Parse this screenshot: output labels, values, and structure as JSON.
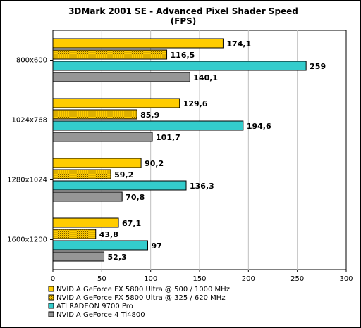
{
  "chart_data": {
    "type": "bar",
    "orientation": "horizontal",
    "title": "3DMark 2001 SE - Advanced Pixel Shader Speed",
    "subtitle": "(FPS)",
    "categories": [
      "800x600",
      "1024x768",
      "1280x1024",
      "1600x1200"
    ],
    "series": [
      {
        "name": "NVIDIA GeForce FX 5800 Ultra @ 500 / 1000 MHz",
        "values": [
          174.1,
          129.6,
          90.2,
          67.1
        ],
        "labels": [
          "174,1",
          "129,6",
          "90,2",
          "67,1"
        ],
        "color": "#ffcc00",
        "pattern": "solid"
      },
      {
        "name": "NVIDIA GeForce FX 5800 Ultra @ 325 / 620 MHz",
        "values": [
          116.5,
          85.9,
          59.2,
          43.8
        ],
        "labels": [
          "116,5",
          "85,9",
          "59,2",
          "43,8"
        ],
        "color": "#ffcc00",
        "pattern": "dots"
      },
      {
        "name": "ATI RADEON 9700 Pro",
        "values": [
          259,
          194.6,
          136.3,
          97
        ],
        "labels": [
          "259",
          "194,6",
          "136,3",
          "97"
        ],
        "color": "#33cccc",
        "pattern": "solid"
      },
      {
        "name": "NVIDIA GeForce 4 Ti4800",
        "values": [
          140.1,
          101.7,
          70.8,
          52.3
        ],
        "labels": [
          "140,1",
          "101,7",
          "70,8",
          "52,3"
        ],
        "color": "#969696",
        "pattern": "solid"
      }
    ],
    "xlim": [
      0,
      300
    ],
    "xticks": [
      0,
      50,
      100,
      150,
      200,
      250,
      300
    ],
    "xtick_labels": [
      "0",
      "50",
      "100",
      "150",
      "200",
      "250",
      "300"
    ],
    "grid": true,
    "legend": "bottom-left",
    "colors": {
      "plot_background": "#ffffff",
      "border": "#000000"
    }
  }
}
